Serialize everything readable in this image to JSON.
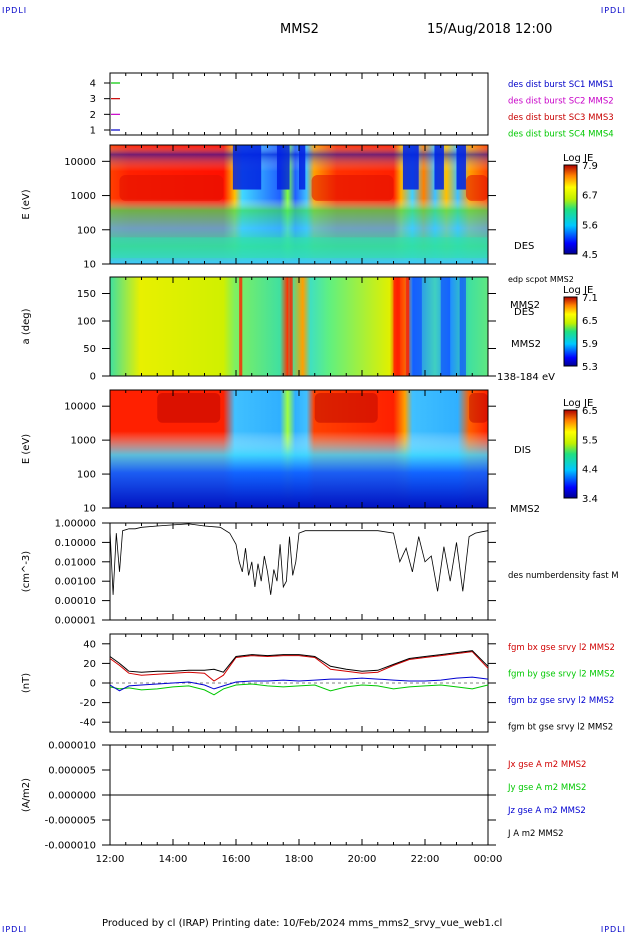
{
  "header": {
    "corner_tl": "IPDLI",
    "corner_tr": "IPDLI",
    "corner_bl": "IPDLI",
    "corner_br": "IPDLI",
    "spacecraft": "MMS2",
    "datetime": "15/Aug/2018 12:00"
  },
  "footer": {
    "text": "Produced by cl (IRAP)   Printing date: 10/Feb/2024   mms_mms2_srvy_vue_web1.cl"
  },
  "x_axis": {
    "ticks": [
      "12:00",
      "14:00",
      "16:00",
      "18:00",
      "20:00",
      "22:00",
      "00:00"
    ]
  },
  "colors": {
    "sc1": "#0000c8",
    "sc2": "#c800c8",
    "sc3": "#c80000",
    "sc4": "#00c800",
    "bx": "#d00000",
    "by": "#00c800",
    "bz": "#0000d0",
    "bt": "#000000"
  },
  "chart_data": [
    {
      "type": "line",
      "panel": "burst-indicator",
      "yticks": [
        "1",
        "2",
        "3",
        "4"
      ],
      "legend": [
        {
          "name": "des dist burst SC1 MMS1",
          "color": "#0000c8"
        },
        {
          "name": "des dist burst SC2 MMS2",
          "color": "#c800c8"
        },
        {
          "name": "des dist burst SC3 MMS3",
          "color": "#c80000"
        },
        {
          "name": "des dist burst SC4 MMS4",
          "color": "#00c800"
        }
      ]
    },
    {
      "type": "heatmap",
      "panel": "des-energy",
      "ylabel": "E (eV)",
      "yscale": "log",
      "ylim": [
        10,
        30000
      ],
      "yticks": [
        "10000",
        "1000",
        "100",
        "10"
      ],
      "label": "DES",
      "overlay_label": "edp scpot MMS2",
      "spacecraft_label": "MMS2",
      "colorbar": {
        "title": "Log JE",
        "ticks": [
          "7.9",
          "6.7",
          "5.6",
          "4.5"
        ],
        "min": 4.5,
        "max": 7.9
      }
    },
    {
      "type": "heatmap",
      "panel": "des-pitch-angle",
      "ylabel": "a (deg)",
      "ylim": [
        0,
        180
      ],
      "yticks": [
        "150",
        "100",
        "50",
        "0"
      ],
      "label": "DES",
      "spacecraft_label": "MMS2",
      "energy_label": "138-184 eV",
      "colorbar": {
        "title": "Log JE",
        "ticks": [
          "7.1",
          "6.5",
          "5.9",
          "5.3"
        ],
        "min": 5.3,
        "max": 7.1
      }
    },
    {
      "type": "heatmap",
      "panel": "dis-energy",
      "ylabel": "E (eV)",
      "yscale": "log",
      "ylim": [
        10,
        30000
      ],
      "yticks": [
        "10000",
        "1000",
        "100",
        "10"
      ],
      "label": "DIS",
      "spacecraft_label": "MMS2",
      "colorbar": {
        "title": "Log JE",
        "ticks": [
          "6.5",
          "5.5",
          "4.4",
          "3.4"
        ],
        "min": 3.4,
        "max": 6.5
      }
    },
    {
      "type": "line",
      "panel": "density",
      "ylabel": "(cm^-3)",
      "yscale": "log",
      "ylim": [
        1e-05,
        1
      ],
      "yticks": [
        "1.00000",
        "0.10000",
        "0.01000",
        "0.00100",
        "0.00010",
        "0.00001"
      ],
      "series": [
        {
          "name": "des numberdensity fast M",
          "color": "#000000",
          "x": [
            12.0,
            12.1,
            12.2,
            12.3,
            12.4,
            12.6,
            12.8,
            13.0,
            13.5,
            14.0,
            14.5,
            15.0,
            15.5,
            15.8,
            16.0,
            16.1,
            16.2,
            16.3,
            16.4,
            16.5,
            16.6,
            16.7,
            16.8,
            16.9,
            17.0,
            17.1,
            17.2,
            17.3,
            17.4,
            17.5,
            17.6,
            17.7,
            17.8,
            17.9,
            18.0,
            18.2,
            18.5,
            19.0,
            19.5,
            20.0,
            20.5,
            21.0,
            21.2,
            21.4,
            21.6,
            21.8,
            22.0,
            22.2,
            22.4,
            22.6,
            22.8,
            23.0,
            23.2,
            23.4,
            23.6,
            23.8,
            24.0
          ],
          "y": [
            0.4,
            0.0002,
            0.3,
            0.003,
            0.4,
            0.5,
            0.5,
            0.6,
            0.7,
            0.8,
            0.9,
            0.7,
            0.6,
            0.3,
            0.08,
            0.01,
            0.003,
            0.05,
            0.002,
            0.01,
            0.0005,
            0.008,
            0.001,
            0.02,
            0.003,
            0.0002,
            0.004,
            0.001,
            0.08,
            0.0005,
            0.001,
            0.2,
            0.002,
            0.01,
            0.3,
            0.4,
            0.4,
            0.4,
            0.4,
            0.4,
            0.4,
            0.3,
            0.01,
            0.05,
            0.003,
            0.2,
            0.01,
            0.02,
            0.0003,
            0.06,
            0.001,
            0.1,
            0.0003,
            0.2,
            0.3,
            0.35,
            0.4
          ]
        }
      ]
    },
    {
      "type": "line",
      "panel": "magnetic-field",
      "ylabel": "(nT)",
      "ylim": [
        -50,
        50
      ],
      "yticks": [
        "40",
        "20",
        "0",
        "-20",
        "-40"
      ],
      "series": [
        {
          "name": "fgm bx gse srvy l2 MMS2",
          "color": "#d00000",
          "x": [
            12.0,
            12.3,
            12.6,
            13.0,
            13.5,
            14.0,
            14.5,
            15.0,
            15.3,
            15.6,
            16.0,
            16.5,
            17.0,
            17.5,
            18.0,
            18.5,
            19.0,
            19.5,
            20.0,
            20.5,
            21.0,
            21.5,
            22.0,
            22.5,
            23.0,
            23.5,
            24.0
          ],
          "y": [
            25,
            18,
            10,
            8,
            9,
            10,
            11,
            10,
            2,
            8,
            26,
            28,
            27,
            28,
            28,
            26,
            14,
            12,
            10,
            11,
            18,
            24,
            26,
            28,
            30,
            32,
            15
          ]
        },
        {
          "name": "fgm by gse srvy l2 MMS2",
          "color": "#00c800",
          "x": [
            12.0,
            12.3,
            12.6,
            13.0,
            13.5,
            14.0,
            14.5,
            15.0,
            15.3,
            15.6,
            16.0,
            16.5,
            17.0,
            17.5,
            18.0,
            18.5,
            19.0,
            19.5,
            20.0,
            20.5,
            21.0,
            21.5,
            22.0,
            22.5,
            23.0,
            23.5,
            24.0
          ],
          "y": [
            -4,
            -6,
            -5,
            -7,
            -6,
            -4,
            -3,
            -7,
            -12,
            -6,
            -2,
            -1,
            -3,
            -4,
            -3,
            -2,
            -8,
            -4,
            -2,
            -3,
            -6,
            -4,
            -3,
            -2,
            -4,
            -6,
            -2
          ]
        },
        {
          "name": "fgm bz gse srvy l2 MMS2",
          "color": "#0000d0",
          "x": [
            12.0,
            12.3,
            12.6,
            13.0,
            13.5,
            14.0,
            14.5,
            15.0,
            15.3,
            15.6,
            16.0,
            16.5,
            17.0,
            17.5,
            18.0,
            18.5,
            19.0,
            19.5,
            20.0,
            20.5,
            21.0,
            21.5,
            22.0,
            22.5,
            23.0,
            23.5,
            24.0
          ],
          "y": [
            -2,
            -8,
            -3,
            -2,
            -1,
            0,
            1,
            -2,
            -6,
            -3,
            1,
            2,
            2,
            3,
            2,
            3,
            4,
            4,
            5,
            4,
            3,
            2,
            2,
            3,
            5,
            6,
            4
          ]
        },
        {
          "name": "fgm bt gse srvy l2 MMS2",
          "color": "#000000",
          "x": [
            12.0,
            12.3,
            12.6,
            13.0,
            13.5,
            14.0,
            14.5,
            15.0,
            15.3,
            15.6,
            16.0,
            16.5,
            17.0,
            17.5,
            18.0,
            18.5,
            19.0,
            19.5,
            20.0,
            20.5,
            21.0,
            21.5,
            22.0,
            22.5,
            23.0,
            23.5,
            24.0
          ],
          "y": [
            27,
            20,
            12,
            11,
            12,
            12,
            13,
            13,
            14,
            11,
            27,
            29,
            28,
            29,
            29,
            27,
            17,
            14,
            12,
            13,
            19,
            25,
            27,
            29,
            31,
            33,
            17
          ]
        }
      ]
    },
    {
      "type": "line",
      "panel": "current-density",
      "ylabel": "(A/m2)",
      "ylim": [
        -1e-05,
        1e-05
      ],
      "yticks": [
        "0.000010",
        "0.000005",
        "0.000000",
        "-0.000005",
        "-0.000010"
      ],
      "series": [
        {
          "name": "Jx gse A m2 MMS2",
          "color": "#d00000",
          "x": [
            12,
            24
          ],
          "y": [
            0,
            0
          ]
        },
        {
          "name": "Jy gse A m2 MMS2",
          "color": "#00c800",
          "x": [
            12,
            24
          ],
          "y": [
            0,
            0
          ]
        },
        {
          "name": "Jz gse A m2 MMS2",
          "color": "#0000d0",
          "x": [
            12,
            24
          ],
          "y": [
            0,
            0
          ]
        },
        {
          "name": "J A m2 MMS2",
          "color": "#000000",
          "x": [
            12,
            24
          ],
          "y": [
            0,
            0
          ]
        }
      ]
    }
  ]
}
